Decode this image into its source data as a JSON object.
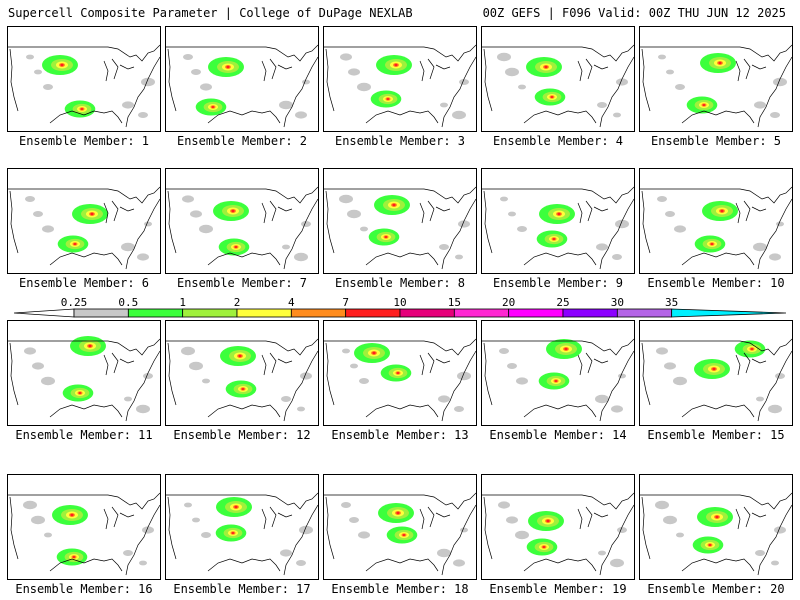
{
  "header": {
    "title": "Supercell Composite Parameter | College of DuPage NEXLAB",
    "run_info": "00Z GEFS | F096 Valid: 00Z THU JUN 12 2025"
  },
  "legend": {
    "thresholds": [
      "0.25",
      "0.5",
      "1",
      "2",
      "4",
      "7",
      "10",
      "15",
      "20",
      "25",
      "30",
      "35"
    ],
    "colors": [
      "#c8c8c8",
      "#3cff3c",
      "#a0f03c",
      "#ffff3c",
      "#ff8c1e",
      "#ff1e1e",
      "#e6007a",
      "#ff28d2",
      "#ff00ff",
      "#8c00ff",
      "#b464e6",
      "#00f0ff"
    ]
  },
  "panels": [
    {
      "label": "Ensemble Member: 1"
    },
    {
      "label": "Ensemble Member: 2"
    },
    {
      "label": "Ensemble Member: 3"
    },
    {
      "label": "Ensemble Member: 4"
    },
    {
      "label": "Ensemble Member: 5"
    },
    {
      "label": "Ensemble Member: 6"
    },
    {
      "label": "Ensemble Member: 7"
    },
    {
      "label": "Ensemble Member: 8"
    },
    {
      "label": "Ensemble Member: 9"
    },
    {
      "label": "Ensemble Member: 10"
    },
    {
      "label": "Ensemble Member: 11"
    },
    {
      "label": "Ensemble Member: 12"
    },
    {
      "label": "Ensemble Member: 13"
    },
    {
      "label": "Ensemble Member: 14"
    },
    {
      "label": "Ensemble Member: 15"
    },
    {
      "label": "Ensemble Member: 16"
    },
    {
      "label": "Ensemble Member: 17"
    },
    {
      "label": "Ensemble Member: 18"
    },
    {
      "label": "Ensemble Member: 19"
    },
    {
      "label": "Ensemble Member: 20"
    }
  ]
}
